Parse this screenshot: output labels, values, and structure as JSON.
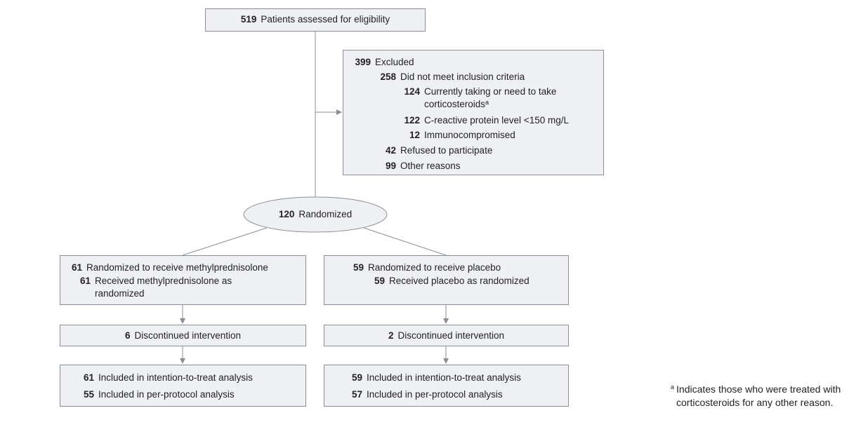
{
  "assessed": {
    "count": 519,
    "label": "Patients assessed for eligibility"
  },
  "excluded": {
    "count": 399,
    "label": "Excluded",
    "items": [
      {
        "count": 258,
        "label": "Did not meet inclusion criteria",
        "items": [
          {
            "count": 124,
            "label": "Currently taking or need to take corticosteroids",
            "footnote_mark": "a"
          },
          {
            "count": 122,
            "label": "C-reactive protein level <150 mg/L"
          },
          {
            "count": 12,
            "label": "Immunocompromised"
          }
        ]
      },
      {
        "count": 42,
        "label": "Refused to participate"
      },
      {
        "count": 99,
        "label": "Other reasons"
      }
    ]
  },
  "randomized": {
    "count": 120,
    "label": "Randomized"
  },
  "arms": [
    {
      "allocated": {
        "count": 61,
        "label": "Randomized to receive methylprednisolone"
      },
      "received": {
        "count": 61,
        "label": "Received methylprednisolone as randomized"
      },
      "discontinued": {
        "count": 6,
        "label": "Discontinued intervention"
      },
      "analysis": [
        {
          "count": 61,
          "label": "Included in intention-to-treat analysis"
        },
        {
          "count": 55,
          "label": "Included in per-protocol analysis"
        }
      ]
    },
    {
      "allocated": {
        "count": 59,
        "label": "Randomized to receive placebo"
      },
      "received": {
        "count": 59,
        "label": "Received placebo as randomized"
      },
      "discontinued": {
        "count": 2,
        "label": "Discontinued intervention"
      },
      "analysis": [
        {
          "count": 59,
          "label": "Included in intention-to-treat analysis"
        },
        {
          "count": 57,
          "label": "Included in per-protocol analysis"
        }
      ]
    }
  ],
  "footnote": {
    "mark": "a",
    "text": "Indicates those who were treated with corticosteroids for any other reason."
  }
}
